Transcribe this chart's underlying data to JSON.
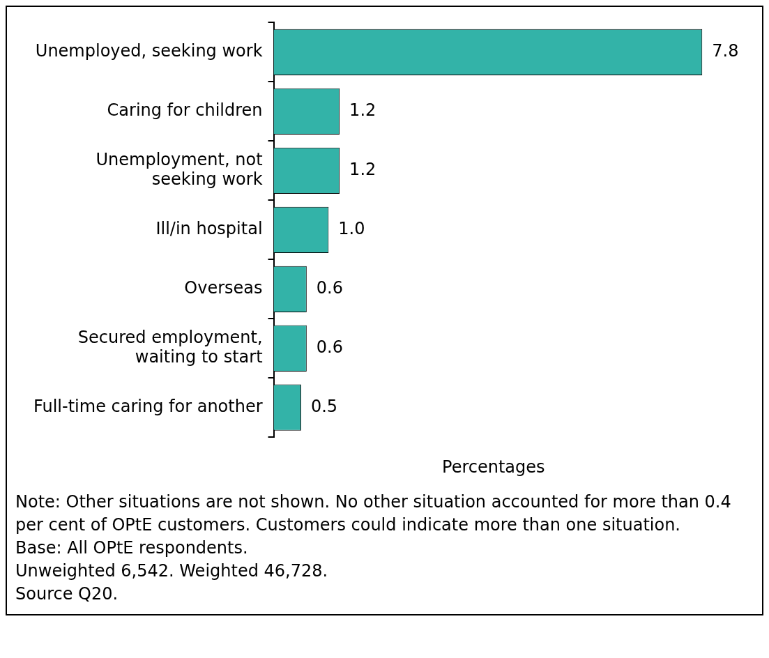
{
  "chart_data": {
    "type": "bar",
    "orientation": "horizontal",
    "xlabel": "Percentages",
    "categories": [
      "Unemployed, seeking work",
      "Caring for children",
      "Unemployment, not\nseeking work",
      "Ill/in hospital",
      "Overseas",
      "Secured employment,\nwaiting to start",
      "Full-time caring for another"
    ],
    "values": [
      7.8,
      1.2,
      1.2,
      1.0,
      0.6,
      0.6,
      0.5
    ],
    "value_labels": [
      "7.8",
      "1.2",
      "1.2",
      "1.0",
      "0.6",
      "0.6",
      "0.5"
    ],
    "color": "#33b3a8",
    "grid": false,
    "legend": false,
    "annotations": [
      "Note: Other situations are not shown. No other situation accounted for more than 0.4 per cent of OPtE customers. Customers could indicate more than one situation.",
      "Base: All OPtE respondents.",
      "Unweighted 6,542. Weighted 46,728.",
      "Source Q20."
    ]
  }
}
